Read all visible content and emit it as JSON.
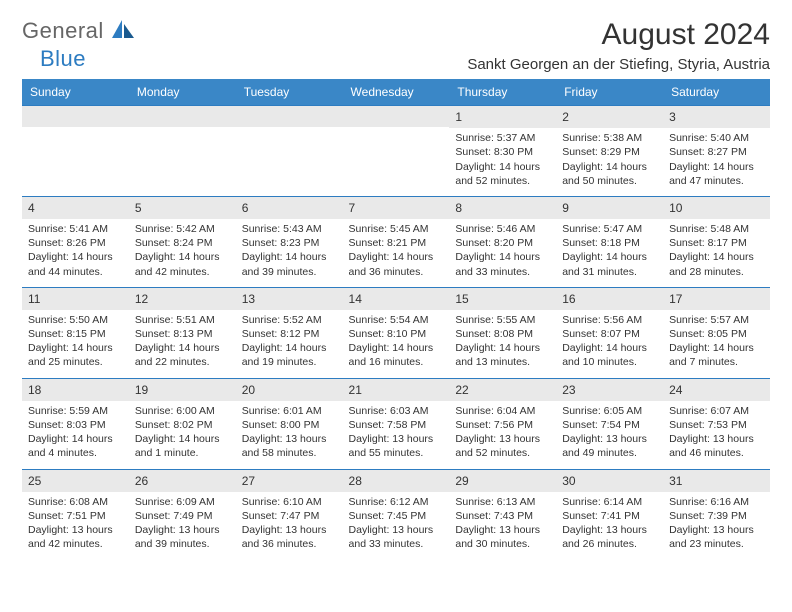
{
  "logo": {
    "text1": "General",
    "text2": "Blue"
  },
  "header": {
    "month_title": "August 2024",
    "location": "Sankt Georgen an der Stiefing, Styria, Austria"
  },
  "colors": {
    "header_bg": "#3a87c7",
    "daynum_bg": "#e9e9e9",
    "border": "#2d7cc1",
    "text": "#333333",
    "logo_gray": "#666666",
    "logo_blue": "#2d7cc1"
  },
  "day_names": [
    "Sunday",
    "Monday",
    "Tuesday",
    "Wednesday",
    "Thursday",
    "Friday",
    "Saturday"
  ],
  "weeks": [
    [
      null,
      null,
      null,
      null,
      {
        "n": "1",
        "sr": "Sunrise: 5:37 AM",
        "ss": "Sunset: 8:30 PM",
        "dl": "Daylight: 14 hours and 52 minutes."
      },
      {
        "n": "2",
        "sr": "Sunrise: 5:38 AM",
        "ss": "Sunset: 8:29 PM",
        "dl": "Daylight: 14 hours and 50 minutes."
      },
      {
        "n": "3",
        "sr": "Sunrise: 5:40 AM",
        "ss": "Sunset: 8:27 PM",
        "dl": "Daylight: 14 hours and 47 minutes."
      }
    ],
    [
      {
        "n": "4",
        "sr": "Sunrise: 5:41 AM",
        "ss": "Sunset: 8:26 PM",
        "dl": "Daylight: 14 hours and 44 minutes."
      },
      {
        "n": "5",
        "sr": "Sunrise: 5:42 AM",
        "ss": "Sunset: 8:24 PM",
        "dl": "Daylight: 14 hours and 42 minutes."
      },
      {
        "n": "6",
        "sr": "Sunrise: 5:43 AM",
        "ss": "Sunset: 8:23 PM",
        "dl": "Daylight: 14 hours and 39 minutes."
      },
      {
        "n": "7",
        "sr": "Sunrise: 5:45 AM",
        "ss": "Sunset: 8:21 PM",
        "dl": "Daylight: 14 hours and 36 minutes."
      },
      {
        "n": "8",
        "sr": "Sunrise: 5:46 AM",
        "ss": "Sunset: 8:20 PM",
        "dl": "Daylight: 14 hours and 33 minutes."
      },
      {
        "n": "9",
        "sr": "Sunrise: 5:47 AM",
        "ss": "Sunset: 8:18 PM",
        "dl": "Daylight: 14 hours and 31 minutes."
      },
      {
        "n": "10",
        "sr": "Sunrise: 5:48 AM",
        "ss": "Sunset: 8:17 PM",
        "dl": "Daylight: 14 hours and 28 minutes."
      }
    ],
    [
      {
        "n": "11",
        "sr": "Sunrise: 5:50 AM",
        "ss": "Sunset: 8:15 PM",
        "dl": "Daylight: 14 hours and 25 minutes."
      },
      {
        "n": "12",
        "sr": "Sunrise: 5:51 AM",
        "ss": "Sunset: 8:13 PM",
        "dl": "Daylight: 14 hours and 22 minutes."
      },
      {
        "n": "13",
        "sr": "Sunrise: 5:52 AM",
        "ss": "Sunset: 8:12 PM",
        "dl": "Daylight: 14 hours and 19 minutes."
      },
      {
        "n": "14",
        "sr": "Sunrise: 5:54 AM",
        "ss": "Sunset: 8:10 PM",
        "dl": "Daylight: 14 hours and 16 minutes."
      },
      {
        "n": "15",
        "sr": "Sunrise: 5:55 AM",
        "ss": "Sunset: 8:08 PM",
        "dl": "Daylight: 14 hours and 13 minutes."
      },
      {
        "n": "16",
        "sr": "Sunrise: 5:56 AM",
        "ss": "Sunset: 8:07 PM",
        "dl": "Daylight: 14 hours and 10 minutes."
      },
      {
        "n": "17",
        "sr": "Sunrise: 5:57 AM",
        "ss": "Sunset: 8:05 PM",
        "dl": "Daylight: 14 hours and 7 minutes."
      }
    ],
    [
      {
        "n": "18",
        "sr": "Sunrise: 5:59 AM",
        "ss": "Sunset: 8:03 PM",
        "dl": "Daylight: 14 hours and 4 minutes."
      },
      {
        "n": "19",
        "sr": "Sunrise: 6:00 AM",
        "ss": "Sunset: 8:02 PM",
        "dl": "Daylight: 14 hours and 1 minute."
      },
      {
        "n": "20",
        "sr": "Sunrise: 6:01 AM",
        "ss": "Sunset: 8:00 PM",
        "dl": "Daylight: 13 hours and 58 minutes."
      },
      {
        "n": "21",
        "sr": "Sunrise: 6:03 AM",
        "ss": "Sunset: 7:58 PM",
        "dl": "Daylight: 13 hours and 55 minutes."
      },
      {
        "n": "22",
        "sr": "Sunrise: 6:04 AM",
        "ss": "Sunset: 7:56 PM",
        "dl": "Daylight: 13 hours and 52 minutes."
      },
      {
        "n": "23",
        "sr": "Sunrise: 6:05 AM",
        "ss": "Sunset: 7:54 PM",
        "dl": "Daylight: 13 hours and 49 minutes."
      },
      {
        "n": "24",
        "sr": "Sunrise: 6:07 AM",
        "ss": "Sunset: 7:53 PM",
        "dl": "Daylight: 13 hours and 46 minutes."
      }
    ],
    [
      {
        "n": "25",
        "sr": "Sunrise: 6:08 AM",
        "ss": "Sunset: 7:51 PM",
        "dl": "Daylight: 13 hours and 42 minutes."
      },
      {
        "n": "26",
        "sr": "Sunrise: 6:09 AM",
        "ss": "Sunset: 7:49 PM",
        "dl": "Daylight: 13 hours and 39 minutes."
      },
      {
        "n": "27",
        "sr": "Sunrise: 6:10 AM",
        "ss": "Sunset: 7:47 PM",
        "dl": "Daylight: 13 hours and 36 minutes."
      },
      {
        "n": "28",
        "sr": "Sunrise: 6:12 AM",
        "ss": "Sunset: 7:45 PM",
        "dl": "Daylight: 13 hours and 33 minutes."
      },
      {
        "n": "29",
        "sr": "Sunrise: 6:13 AM",
        "ss": "Sunset: 7:43 PM",
        "dl": "Daylight: 13 hours and 30 minutes."
      },
      {
        "n": "30",
        "sr": "Sunrise: 6:14 AM",
        "ss": "Sunset: 7:41 PM",
        "dl": "Daylight: 13 hours and 26 minutes."
      },
      {
        "n": "31",
        "sr": "Sunrise: 6:16 AM",
        "ss": "Sunset: 7:39 PM",
        "dl": "Daylight: 13 hours and 23 minutes."
      }
    ]
  ]
}
